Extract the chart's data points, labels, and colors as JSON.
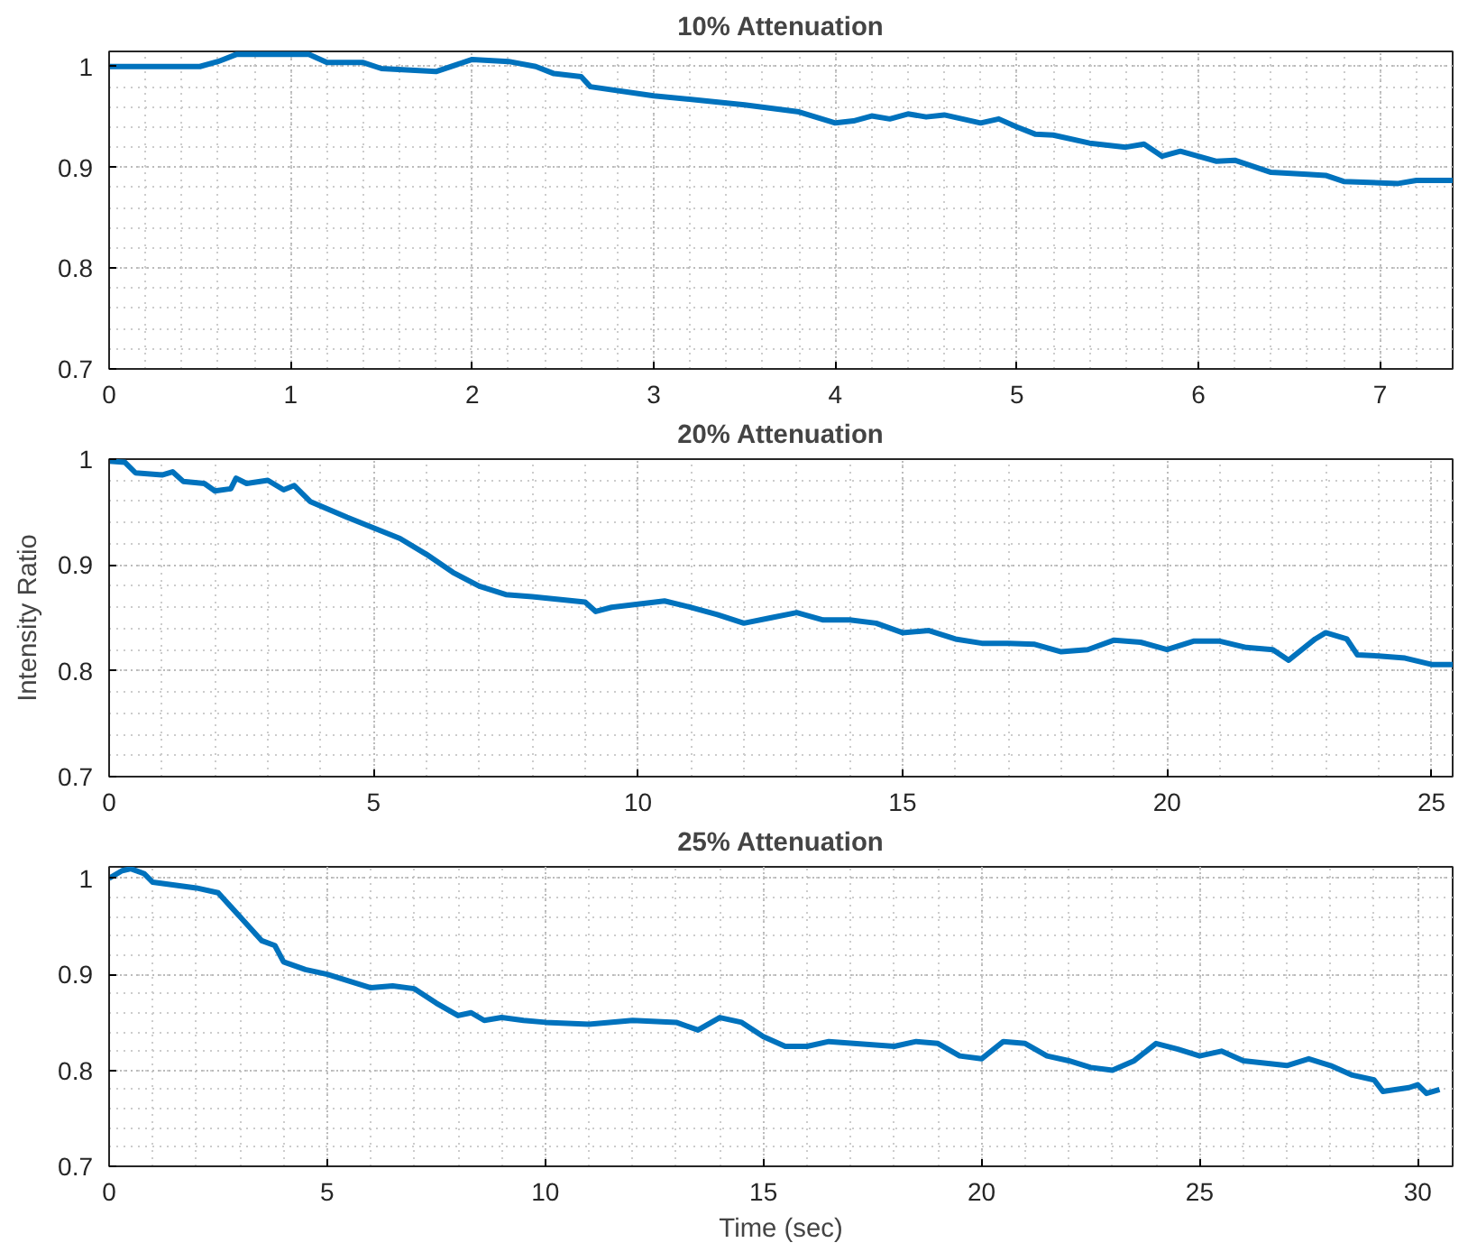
{
  "chart_data": [
    {
      "type": "line",
      "title": "10% Attenuation",
      "xlim": [
        0,
        7.4
      ],
      "ylim": [
        0.7,
        1.015
      ],
      "xticks": [
        0,
        1,
        2,
        3,
        4,
        5,
        6,
        7
      ],
      "yticks": [
        0.7,
        0.8,
        0.9,
        1
      ],
      "grid": true,
      "x": [
        0,
        0.5,
        0.6,
        0.7,
        1.1,
        1.2,
        1.4,
        1.5,
        1.8,
        2.0,
        2.2,
        2.35,
        2.45,
        2.6,
        2.65,
        3.0,
        3.5,
        3.8,
        4.0,
        4.1,
        4.2,
        4.3,
        4.4,
        4.5,
        4.6,
        4.8,
        4.9,
        5.0,
        5.1,
        5.2,
        5.4,
        5.6,
        5.7,
        5.8,
        5.9,
        6.1,
        6.2,
        6.4,
        6.6,
        6.7,
        6.8,
        7.1,
        7.2,
        7.4
      ],
      "series": [
        {
          "color": "#0072bd",
          "values": [
            1.0,
            1.0,
            1.005,
            1.012,
            1.012,
            1.004,
            1.004,
            0.998,
            0.995,
            1.007,
            1.005,
            1.0,
            0.993,
            0.99,
            0.98,
            0.971,
            0.962,
            0.955,
            0.944,
            0.946,
            0.951,
            0.948,
            0.953,
            0.95,
            0.952,
            0.944,
            0.948,
            0.94,
            0.933,
            0.932,
            0.924,
            0.92,
            0.923,
            0.911,
            0.916,
            0.906,
            0.907,
            0.895,
            0.893,
            0.892,
            0.886,
            0.884,
            0.887,
            0.887
          ]
        }
      ]
    },
    {
      "type": "line",
      "title": "20% Attenuation",
      "ylabel": "Intensity Ratio",
      "xlim": [
        0,
        25.4
      ],
      "ylim": [
        0.7,
        1.0
      ],
      "xticks": [
        0,
        5,
        10,
        15,
        20,
        25
      ],
      "yticks": [
        0.7,
        0.8,
        0.9,
        1
      ],
      "grid": true,
      "x": [
        0,
        0.3,
        0.5,
        1.0,
        1.2,
        1.4,
        1.8,
        2.0,
        2.3,
        2.4,
        2.6,
        3.0,
        3.3,
        3.5,
        3.8,
        4.5,
        5.0,
        5.5,
        6.0,
        6.5,
        7.0,
        7.5,
        8.0,
        9.0,
        9.2,
        9.5,
        10.0,
        10.5,
        11,
        11.5,
        12,
        12.5,
        13,
        13.5,
        14,
        14.5,
        15,
        15.5,
        16,
        16.5,
        17,
        17.5,
        18,
        18.5,
        19,
        19.5,
        20,
        20.5,
        21,
        21.5,
        22,
        22.3,
        22.8,
        23,
        23.4,
        23.6,
        24,
        24.5,
        25,
        25.4
      ],
      "series": [
        {
          "color": "#0072bd",
          "values": [
            0.998,
            0.997,
            0.987,
            0.985,
            0.988,
            0.979,
            0.977,
            0.97,
            0.972,
            0.982,
            0.977,
            0.98,
            0.971,
            0.975,
            0.96,
            0.945,
            0.935,
            0.925,
            0.91,
            0.893,
            0.88,
            0.872,
            0.87,
            0.865,
            0.856,
            0.86,
            0.863,
            0.866,
            0.86,
            0.853,
            0.845,
            0.85,
            0.855,
            0.848,
            0.848,
            0.845,
            0.836,
            0.838,
            0.83,
            0.826,
            0.826,
            0.825,
            0.818,
            0.82,
            0.829,
            0.827,
            0.82,
            0.828,
            0.828,
            0.822,
            0.82,
            0.81,
            0.83,
            0.836,
            0.83,
            0.815,
            0.814,
            0.812,
            0.806,
            0.806
          ]
        }
      ]
    },
    {
      "type": "line",
      "title": "25% Attenuation",
      "xlabel": "Time (sec)",
      "xlim": [
        0,
        30.8
      ],
      "ylim": [
        0.7,
        1.012
      ],
      "xticks": [
        0,
        5,
        10,
        15,
        20,
        25,
        30
      ],
      "yticks": [
        0.7,
        0.8,
        0.9,
        1
      ],
      "grid": true,
      "x": [
        0,
        0.3,
        0.5,
        0.8,
        1.0,
        1.5,
        2.0,
        2.5,
        3.0,
        3.5,
        3.8,
        4.0,
        4.5,
        5.0,
        5.5,
        6.0,
        6.5,
        7.0,
        7.5,
        8.0,
        8.3,
        8.6,
        9.0,
        9.5,
        10,
        11,
        12,
        13,
        13.5,
        14,
        14.5,
        15,
        15.5,
        16,
        16.5,
        18,
        18.5,
        19,
        19.5,
        20,
        20.5,
        21,
        21.5,
        22,
        22.5,
        23,
        23.5,
        24,
        24.5,
        25,
        25.5,
        26,
        27,
        27.5,
        28,
        28.5,
        29,
        29.2,
        29.8,
        30,
        30.2,
        30.5
      ],
      "series": [
        {
          "color": "#0072bd",
          "values": [
            1.0,
            1.008,
            1.01,
            1.005,
            0.996,
            0.993,
            0.99,
            0.985,
            0.96,
            0.935,
            0.93,
            0.913,
            0.905,
            0.9,
            0.893,
            0.886,
            0.888,
            0.885,
            0.87,
            0.857,
            0.86,
            0.852,
            0.855,
            0.852,
            0.85,
            0.848,
            0.852,
            0.85,
            0.842,
            0.855,
            0.85,
            0.835,
            0.825,
            0.825,
            0.83,
            0.825,
            0.83,
            0.828,
            0.815,
            0.812,
            0.83,
            0.828,
            0.815,
            0.81,
            0.803,
            0.8,
            0.81,
            0.828,
            0.822,
            0.815,
            0.82,
            0.81,
            0.805,
            0.812,
            0.805,
            0.795,
            0.79,
            0.778,
            0.782,
            0.785,
            0.776,
            0.78
          ]
        }
      ]
    }
  ]
}
